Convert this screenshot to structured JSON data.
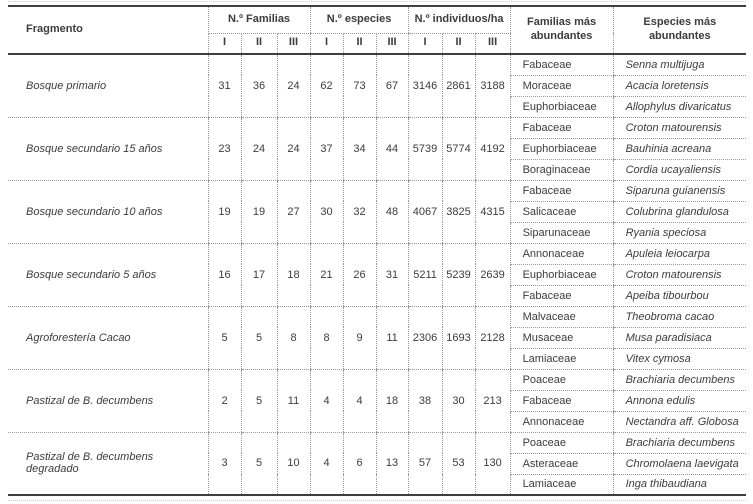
{
  "colors": {
    "text": "#3c3c3c",
    "rule_solid": "#3f3f3f",
    "rule_dotted": "#999999",
    "background": "#ffffff"
  },
  "table": {
    "columns": {
      "fragment": "Fragmento",
      "groups": [
        {
          "label": "N.º Familias",
          "subs": [
            "I",
            "II",
            "III"
          ]
        },
        {
          "label": "N.º especies",
          "subs": [
            "I",
            "II",
            "III"
          ]
        },
        {
          "label": "N.º individuos/ha",
          "subs": [
            "I",
            "II",
            "III"
          ]
        }
      ],
      "familias": "Familias más abundantes",
      "especies": "Especies más abundantes"
    },
    "rows": [
      {
        "fragment": "Bosque primario",
        "familias_n": [
          31,
          36,
          24
        ],
        "especies_n": [
          62,
          73,
          67
        ],
        "individuos_ha": [
          3146,
          2861,
          3188
        ],
        "abundantes": [
          {
            "familia": "Fabaceae",
            "especie": "Senna multijuga"
          },
          {
            "familia": "Moraceae",
            "especie": "Acacia loretensis"
          },
          {
            "familia": "Euphorbiaceae",
            "especie": "Allophylus divaricatus"
          }
        ]
      },
      {
        "fragment": "Bosque secundario 15 años",
        "familias_n": [
          23,
          24,
          24
        ],
        "especies_n": [
          37,
          34,
          44
        ],
        "individuos_ha": [
          5739,
          5774,
          4192
        ],
        "abundantes": [
          {
            "familia": "Fabaceae",
            "especie": "Croton matourensis"
          },
          {
            "familia": "Euphorbiaceae",
            "especie": "Bauhinia acreana"
          },
          {
            "familia": "Boraginaceae",
            "especie": "Cordia ucayaliensis"
          }
        ]
      },
      {
        "fragment": "Bosque secundario 10 años",
        "familias_n": [
          19,
          19,
          27
        ],
        "especies_n": [
          30,
          32,
          48
        ],
        "individuos_ha": [
          4067,
          3825,
          4315
        ],
        "abundantes": [
          {
            "familia": "Fabaceae",
            "especie": "Siparuna guianensis"
          },
          {
            "familia": "Salicaceae",
            "especie": "Colubrina glandulosa"
          },
          {
            "familia": "Siparunaceae",
            "especie": "Ryania speciosa"
          }
        ]
      },
      {
        "fragment": "Bosque secundario 5 años",
        "familias_n": [
          16,
          17,
          18
        ],
        "especies_n": [
          21,
          26,
          31
        ],
        "individuos_ha": [
          5211,
          5239,
          2639
        ],
        "abundantes": [
          {
            "familia": "Annonaceae",
            "especie": "Apuleia leiocarpa"
          },
          {
            "familia": "Euphorbiaceae",
            "especie": "Croton matourensis"
          },
          {
            "familia": "Fabaceae",
            "especie": "Apeiba tibourbou"
          }
        ]
      },
      {
        "fragment": "Agroforestería Cacao",
        "familias_n": [
          5,
          5,
          8
        ],
        "especies_n": [
          8,
          9,
          11
        ],
        "individuos_ha": [
          2306,
          1693,
          2128
        ],
        "abundantes": [
          {
            "familia": "Malvaceae",
            "especie": "Theobroma cacao"
          },
          {
            "familia": "Musaceae",
            "especie": "Musa paradisiaca"
          },
          {
            "familia": "Lamiaceae",
            "especie": "Vitex cymosa"
          }
        ]
      },
      {
        "fragment": "Pastizal de B. decumbens",
        "familias_n": [
          2,
          5,
          11
        ],
        "especies_n": [
          4,
          4,
          18
        ],
        "individuos_ha": [
          38,
          30,
          213
        ],
        "abundantes": [
          {
            "familia": "Poaceae",
            "especie": "Brachiaria decumbens"
          },
          {
            "familia": "Fabaceae",
            "especie": "Annona edulis"
          },
          {
            "familia": "Annonaceae",
            "especie": "Nectandra aff. Globosa"
          }
        ]
      },
      {
        "fragment": "Pastizal de B. decumbens degradado",
        "familias_n": [
          3,
          5,
          10
        ],
        "especies_n": [
          4,
          6,
          13
        ],
        "individuos_ha": [
          57,
          53,
          130
        ],
        "abundantes": [
          {
            "familia": "Poaceae",
            "especie": "Brachiaria decumbens"
          },
          {
            "familia": "Asteraceae",
            "especie": "Chromolaena laevigata"
          },
          {
            "familia": "Lamiaceae",
            "especie": "Inga thibaudiana"
          }
        ]
      }
    ]
  }
}
